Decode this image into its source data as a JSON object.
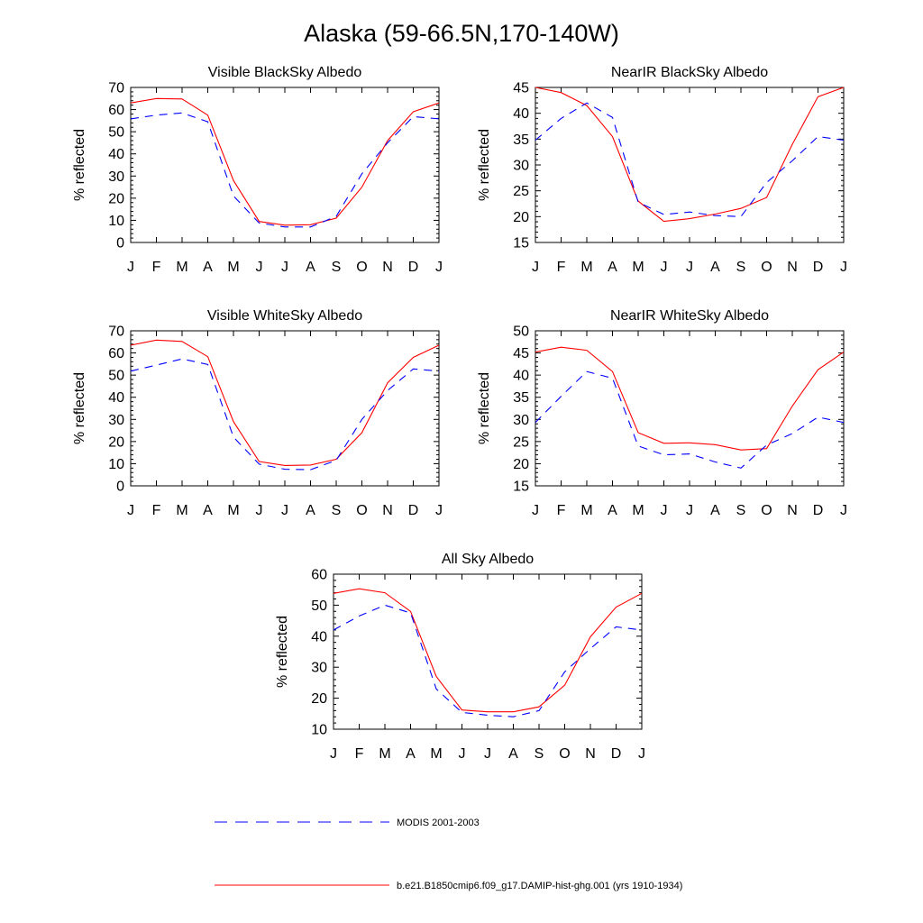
{
  "title": "Alaska (59-66.5N,170-140W)",
  "colors": {
    "model": "#ff0000",
    "obs": "#0000ff"
  },
  "legend": [
    {
      "key": "obs",
      "label": "MODIS 2001-2003",
      "style": "dashed"
    },
    {
      "key": "model",
      "label": "b.e21.B1850cmip6.f09_g17.DAMIP-hist-ghg.001 (yrs 1910-1934)",
      "style": "solid"
    }
  ],
  "chart_data": [
    {
      "type": "line",
      "title": "Visible BlackSky Albedo",
      "ylabel": "% reflected",
      "categories": [
        "J",
        "F",
        "M",
        "A",
        "M",
        "J",
        "J",
        "A",
        "S",
        "O",
        "N",
        "D",
        "J"
      ],
      "ylim": [
        0,
        70
      ],
      "yticks": [
        0,
        10,
        20,
        30,
        40,
        50,
        60,
        70
      ],
      "series": [
        {
          "key": "model",
          "values": [
            63,
            65,
            64.8,
            57.5,
            28,
            9.5,
            7.8,
            8,
            11,
            25,
            46,
            59,
            63
          ]
        },
        {
          "key": "obs",
          "values": [
            55.8,
            57.5,
            58.5,
            54.5,
            21,
            8.8,
            7,
            7,
            11.8,
            31,
            45,
            56.8,
            55.8
          ]
        }
      ]
    },
    {
      "type": "line",
      "title": "NearIR BlackSky Albedo",
      "ylabel": "% reflected",
      "categories": [
        "J",
        "F",
        "M",
        "A",
        "M",
        "J",
        "J",
        "A",
        "S",
        "O",
        "N",
        "D",
        "J"
      ],
      "ylim": [
        15,
        45
      ],
      "yticks": [
        15,
        20,
        25,
        30,
        35,
        40,
        45
      ],
      "series": [
        {
          "key": "model",
          "values": [
            45,
            44,
            41.5,
            35.5,
            23,
            19.1,
            19.6,
            20.5,
            21.6,
            23.7,
            34,
            43.2,
            45
          ]
        },
        {
          "key": "obs",
          "values": [
            34.8,
            39,
            42,
            39.2,
            22.8,
            20.4,
            20.9,
            20.2,
            20,
            26.6,
            30.8,
            35.5,
            34.8
          ]
        }
      ]
    },
    {
      "type": "line",
      "title": "Visible WhiteSky Albedo",
      "ylabel": "% reflected",
      "categories": [
        "J",
        "F",
        "M",
        "A",
        "M",
        "J",
        "J",
        "A",
        "S",
        "O",
        "N",
        "D",
        "J"
      ],
      "ylim": [
        0,
        70
      ],
      "yticks": [
        0,
        10,
        20,
        30,
        40,
        50,
        60,
        70
      ],
      "series": [
        {
          "key": "model",
          "values": [
            63.5,
            65.8,
            65.2,
            58.3,
            29,
            11,
            9.2,
            9.4,
            12,
            24,
            46.5,
            58,
            63.5
          ]
        },
        {
          "key": "obs",
          "values": [
            51.8,
            54.5,
            57.3,
            54.8,
            22,
            9.8,
            7.5,
            7.3,
            11.5,
            30,
            43,
            52.8,
            51.8
          ]
        }
      ]
    },
    {
      "type": "line",
      "title": "NearIR WhiteSky Albedo",
      "ylabel": "% reflected",
      "categories": [
        "J",
        "F",
        "M",
        "A",
        "M",
        "J",
        "J",
        "A",
        "S",
        "O",
        "N",
        "D",
        "J"
      ],
      "ylim": [
        15,
        50
      ],
      "yticks": [
        15,
        20,
        25,
        30,
        35,
        40,
        45,
        50
      ],
      "series": [
        {
          "key": "model",
          "values": [
            45.2,
            46.3,
            45.6,
            40.8,
            27,
            24.6,
            24.7,
            24.3,
            23.1,
            23.4,
            33,
            41.2,
            45.2
          ]
        },
        {
          "key": "obs",
          "values": [
            29.3,
            35.2,
            40.8,
            39.3,
            24,
            22,
            22.2,
            20.4,
            19,
            24.2,
            26.8,
            30.5,
            29.3
          ]
        }
      ]
    },
    {
      "type": "line",
      "title": "All Sky Albedo",
      "ylabel": "% reflected",
      "categories": [
        "J",
        "F",
        "M",
        "A",
        "M",
        "J",
        "J",
        "A",
        "S",
        "O",
        "N",
        "D",
        "J"
      ],
      "ylim": [
        10,
        60
      ],
      "yticks": [
        10,
        20,
        30,
        40,
        50,
        60
      ],
      "series": [
        {
          "key": "model",
          "values": [
            53.8,
            55.3,
            54,
            48,
            27,
            16.2,
            15.6,
            15.6,
            17.2,
            24.2,
            39.8,
            49.4,
            53.8
          ]
        },
        {
          "key": "obs",
          "values": [
            42,
            46.5,
            50,
            47.5,
            23,
            15.4,
            14.5,
            14,
            16,
            28.5,
            36,
            43,
            42
          ]
        }
      ]
    }
  ]
}
